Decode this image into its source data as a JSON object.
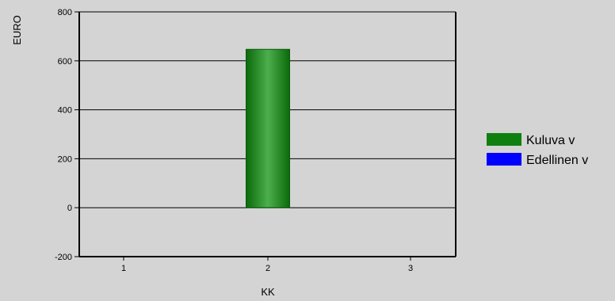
{
  "chart_data": {
    "type": "bar",
    "categories": [
      "1",
      "2",
      "3"
    ],
    "series": [
      {
        "name": "Kuluva v",
        "values": [
          null,
          647,
          null
        ],
        "color": "#0f800f"
      },
      {
        "name": "Edellinen v",
        "values": [
          null,
          null,
          null
        ],
        "color": "#0000ff"
      }
    ],
    "title": "",
    "xlabel": "KK",
    "ylabel": "EURO",
    "ylim": [
      -200,
      800
    ],
    "yticks": [
      -200,
      0,
      200,
      400,
      600,
      800
    ],
    "grid": true,
    "legend_position": "right",
    "colors": {
      "background": "#d4d4d4",
      "gridline": "#000000"
    }
  }
}
